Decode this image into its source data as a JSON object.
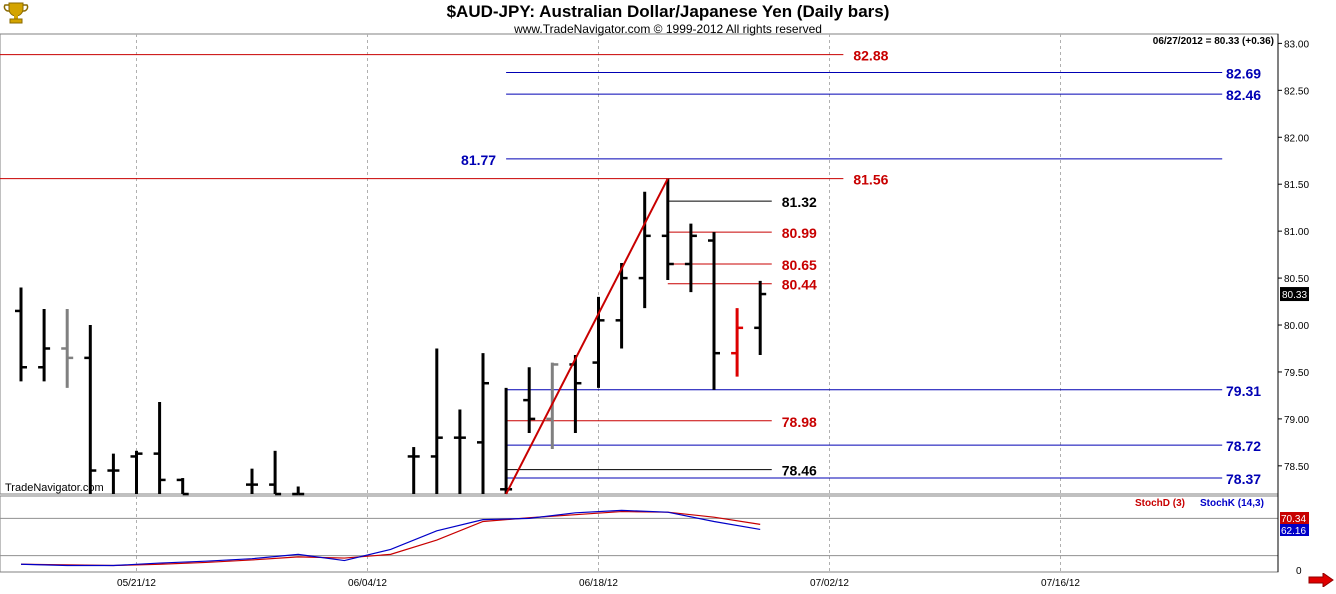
{
  "header": {
    "title": "$AUD-JPY:  Australian Dollar/Japanese Yen  (Daily bars)",
    "subtitle": "www.TradeNavigator.com © 1999-2012 All rights reserved",
    "readout": "06/27/2012 = 80.33 (+0.36)",
    "brand": "TradeNavigator.com",
    "logo_icon": "trophy-icon",
    "scroll_icon": "arrow-right-icon"
  },
  "chart_data": {
    "type": "ohlc",
    "price_axis": {
      "ylim": [
        78.2,
        83.1
      ],
      "ticks": [
        "83.00",
        "82.50",
        "82.00",
        "81.50",
        "81.00",
        "80.50",
        "80.00",
        "79.50",
        "79.00",
        "78.50"
      ],
      "tick_values": [
        83.0,
        82.5,
        82.0,
        81.5,
        81.0,
        80.5,
        80.0,
        79.5,
        79.0,
        78.5
      ],
      "last_price_label": "80.33",
      "last_price": 80.33
    },
    "date_axis": {
      "labels": [
        "05/21/12",
        "06/04/12",
        "06/18/12",
        "07/02/12",
        "07/16/12"
      ],
      "label_bar_index": [
        5,
        15,
        25,
        35,
        45
      ]
    },
    "bars": [
      {
        "i": 0,
        "o": 80.15,
        "h": 80.4,
        "l": 79.4,
        "c": 79.55,
        "color": "#000000"
      },
      {
        "i": 1,
        "o": 79.55,
        "h": 80.17,
        "l": 79.4,
        "c": 79.75,
        "color": "#000000"
      },
      {
        "i": 2,
        "o": 79.75,
        "h": 80.17,
        "l": 79.33,
        "c": 79.65,
        "color": "#808080"
      },
      {
        "i": 3,
        "o": 79.65,
        "h": 80.0,
        "l": 78.2,
        "c": 78.45,
        "color": "#000000"
      },
      {
        "i": 4,
        "o": 78.45,
        "h": 78.63,
        "l": 78.2,
        "c": 78.45,
        "color": "#000000"
      },
      {
        "i": 5,
        "o": 78.6,
        "h": 78.66,
        "l": 78.2,
        "c": 78.63,
        "color": "#000000"
      },
      {
        "i": 6,
        "o": 78.63,
        "h": 79.18,
        "l": 78.2,
        "c": 78.35,
        "color": "#000000"
      },
      {
        "i": 7,
        "o": 78.35,
        "h": 78.37,
        "l": 78.2,
        "c": 78.2,
        "color": "#000000"
      },
      {
        "i": 10,
        "o": 78.3,
        "h": 78.47,
        "l": 78.2,
        "c": 78.3,
        "color": "#000000"
      },
      {
        "i": 11,
        "o": 78.3,
        "h": 78.66,
        "l": 78.2,
        "c": 78.2,
        "color": "#000000"
      },
      {
        "i": 12,
        "o": 78.2,
        "h": 78.28,
        "l": 78.2,
        "c": 78.2,
        "color": "#000000"
      },
      {
        "i": 17,
        "o": 78.6,
        "h": 78.7,
        "l": 78.2,
        "c": 78.6,
        "color": "#000000"
      },
      {
        "i": 18,
        "o": 78.6,
        "h": 79.75,
        "l": 78.2,
        "c": 78.8,
        "color": "#000000"
      },
      {
        "i": 19,
        "o": 78.8,
        "h": 79.1,
        "l": 78.2,
        "c": 78.8,
        "color": "#000000"
      },
      {
        "i": 20,
        "o": 78.75,
        "h": 79.7,
        "l": 78.2,
        "c": 79.38,
        "color": "#000000"
      },
      {
        "i": 21,
        "o": 78.25,
        "h": 79.33,
        "l": 78.2,
        "c": 78.25,
        "color": "#000000"
      },
      {
        "i": 22,
        "o": 79.2,
        "h": 79.55,
        "l": 78.85,
        "c": 79.0,
        "color": "#000000"
      },
      {
        "i": 23,
        "o": 79.0,
        "h": 79.6,
        "l": 78.68,
        "c": 79.58,
        "color": "#808080"
      },
      {
        "i": 24,
        "o": 79.58,
        "h": 79.68,
        "l": 78.85,
        "c": 79.38,
        "color": "#000000"
      },
      {
        "i": 25,
        "o": 79.6,
        "h": 80.3,
        "l": 79.33,
        "c": 80.05,
        "color": "#000000"
      },
      {
        "i": 26,
        "o": 80.05,
        "h": 80.66,
        "l": 79.75,
        "c": 80.5,
        "color": "#000000"
      },
      {
        "i": 27,
        "o": 80.5,
        "h": 81.42,
        "l": 80.18,
        "c": 80.95,
        "color": "#000000"
      },
      {
        "i": 28,
        "o": 80.95,
        "h": 81.56,
        "l": 80.48,
        "c": 80.65,
        "color": "#000000"
      },
      {
        "i": 29,
        "o": 80.65,
        "h": 81.08,
        "l": 80.35,
        "c": 80.95,
        "color": "#000000"
      },
      {
        "i": 30,
        "o": 80.9,
        "h": 80.99,
        "l": 79.31,
        "c": 79.7,
        "color": "#000000"
      },
      {
        "i": 31,
        "o": 79.7,
        "h": 80.18,
        "l": 79.45,
        "c": 79.97,
        "color": "#dd0000"
      },
      {
        "i": 32,
        "o": 79.97,
        "h": 80.47,
        "l": 79.68,
        "c": 80.33,
        "color": "#000000"
      }
    ],
    "levels": [
      {
        "value": 82.88,
        "label": "82.88",
        "color": "#c80000",
        "start_bar": -3,
        "end_bar": 35.6,
        "label_side": "right"
      },
      {
        "value": 82.69,
        "label": "82.69",
        "color": "#0000b4",
        "start_bar": 21,
        "end_bar": 52,
        "label_side": "far-right"
      },
      {
        "value": 82.46,
        "label": "82.46",
        "color": "#0000b4",
        "start_bar": 21,
        "end_bar": 52,
        "label_side": "far-right"
      },
      {
        "value": 81.77,
        "label": "81.77",
        "color": "#0000b4",
        "start_bar": 21,
        "end_bar": 52,
        "label_side": "left"
      },
      {
        "value": 81.56,
        "label": "81.56",
        "color": "#c80000",
        "start_bar": -3,
        "end_bar": 35.6,
        "label_side": "right"
      },
      {
        "value": 81.32,
        "label": "81.32",
        "color": "#000000",
        "start_bar": 28,
        "end_bar": 32.5,
        "label_side": "right"
      },
      {
        "value": 80.99,
        "label": "80.99",
        "color": "#c80000",
        "start_bar": 28,
        "end_bar": 32.5,
        "label_side": "right"
      },
      {
        "value": 80.65,
        "label": "80.65",
        "color": "#c80000",
        "start_bar": 28,
        "end_bar": 32.5,
        "label_side": "right"
      },
      {
        "value": 80.44,
        "label": "80.44",
        "color": "#c80000",
        "start_bar": 28,
        "end_bar": 32.5,
        "label_side": "right"
      },
      {
        "value": 79.31,
        "label": "79.31",
        "color": "#0000b4",
        "start_bar": 21,
        "end_bar": 52,
        "label_side": "far-right"
      },
      {
        "value": 78.98,
        "label": "78.98",
        "color": "#c80000",
        "start_bar": 21,
        "end_bar": 32.5,
        "label_side": "right"
      },
      {
        "value": 78.72,
        "label": "78.72",
        "color": "#0000b4",
        "start_bar": 21,
        "end_bar": 52,
        "label_side": "far-right"
      },
      {
        "value": 78.46,
        "label": "78.46",
        "color": "#000000",
        "start_bar": 21,
        "end_bar": 32.5,
        "label_side": "right"
      },
      {
        "value": 78.37,
        "label": "78.37",
        "color": "#0000b4",
        "start_bar": 21,
        "end_bar": 52,
        "label_side": "far-right"
      }
    ],
    "trendline": {
      "from_bar": 21,
      "from_value": 78.2,
      "to_bar": 28,
      "to_value": 81.56,
      "color": "#c80000"
    },
    "stochastic": {
      "title_d": "StochD (3)",
      "title_k": "StochK (14,3)",
      "color_d": "#c80000",
      "color_k": "#0000c8",
      "ylim": [
        0,
        100
      ],
      "axis_label": "0",
      "reference_levels": [
        80,
        20
      ],
      "d_last_label": "70.34",
      "k_last_label": "62.16",
      "d_values": [
        {
          "i": 0,
          "v": 6
        },
        {
          "i": 2,
          "v": 5
        },
        {
          "i": 4,
          "v": 4
        },
        {
          "i": 6,
          "v": 6
        },
        {
          "i": 8,
          "v": 9
        },
        {
          "i": 10,
          "v": 13
        },
        {
          "i": 12,
          "v": 18
        },
        {
          "i": 14,
          "v": 16
        },
        {
          "i": 16,
          "v": 22
        },
        {
          "i": 18,
          "v": 45
        },
        {
          "i": 20,
          "v": 75
        },
        {
          "i": 22,
          "v": 81
        },
        {
          "i": 24,
          "v": 86
        },
        {
          "i": 26,
          "v": 91
        },
        {
          "i": 28,
          "v": 90
        },
        {
          "i": 30,
          "v": 82
        },
        {
          "i": 32,
          "v": 70.34
        }
      ],
      "k_values": [
        {
          "i": 0,
          "v": 6
        },
        {
          "i": 2,
          "v": 4
        },
        {
          "i": 4,
          "v": 4
        },
        {
          "i": 6,
          "v": 8
        },
        {
          "i": 8,
          "v": 11
        },
        {
          "i": 10,
          "v": 15
        },
        {
          "i": 12,
          "v": 22
        },
        {
          "i": 14,
          "v": 12
        },
        {
          "i": 16,
          "v": 30
        },
        {
          "i": 18,
          "v": 60
        },
        {
          "i": 20,
          "v": 78
        },
        {
          "i": 22,
          "v": 80
        },
        {
          "i": 24,
          "v": 89
        },
        {
          "i": 26,
          "v": 93
        },
        {
          "i": 28,
          "v": 90
        },
        {
          "i": 30,
          "v": 75
        },
        {
          "i": 32,
          "v": 62.16
        }
      ]
    }
  }
}
